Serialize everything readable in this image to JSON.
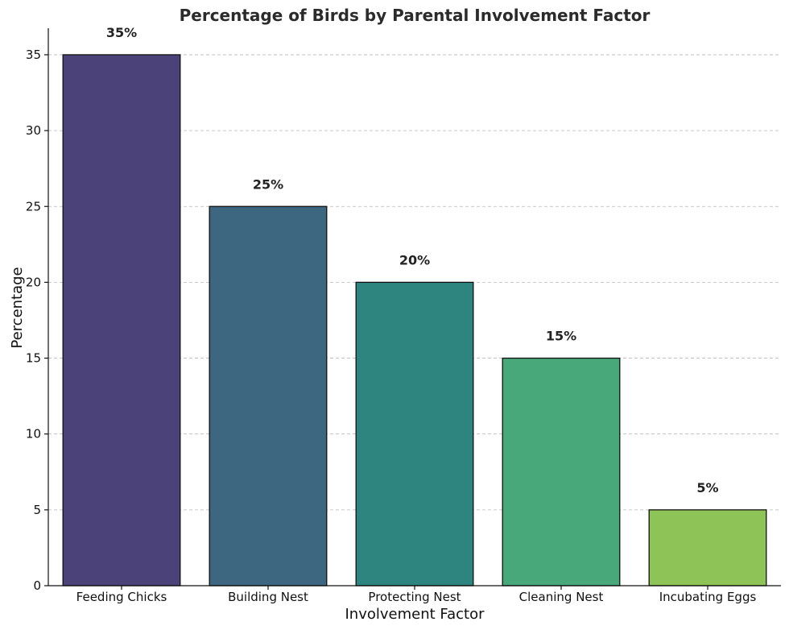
{
  "chart_data": {
    "type": "bar",
    "title": "Percentage of Birds by Parental Involvement Factor",
    "xlabel": "Involvement Factor",
    "ylabel": "Percentage",
    "categories": [
      "Feeding Chicks",
      "Building Nest",
      "Protecting Nest",
      "Cleaning Nest",
      "Incubating Eggs"
    ],
    "values": [
      35,
      25,
      20,
      15,
      5
    ],
    "data_labels": [
      "35%",
      "25%",
      "20%",
      "15%",
      "5%"
    ],
    "colors": [
      "#4b4279",
      "#3d6681",
      "#2e8580",
      "#48a87a",
      "#8dc357"
    ],
    "ylim": [
      0,
      36.75
    ],
    "yticks": [
      0,
      5,
      10,
      15,
      20,
      25,
      30,
      35
    ],
    "grid": true
  }
}
